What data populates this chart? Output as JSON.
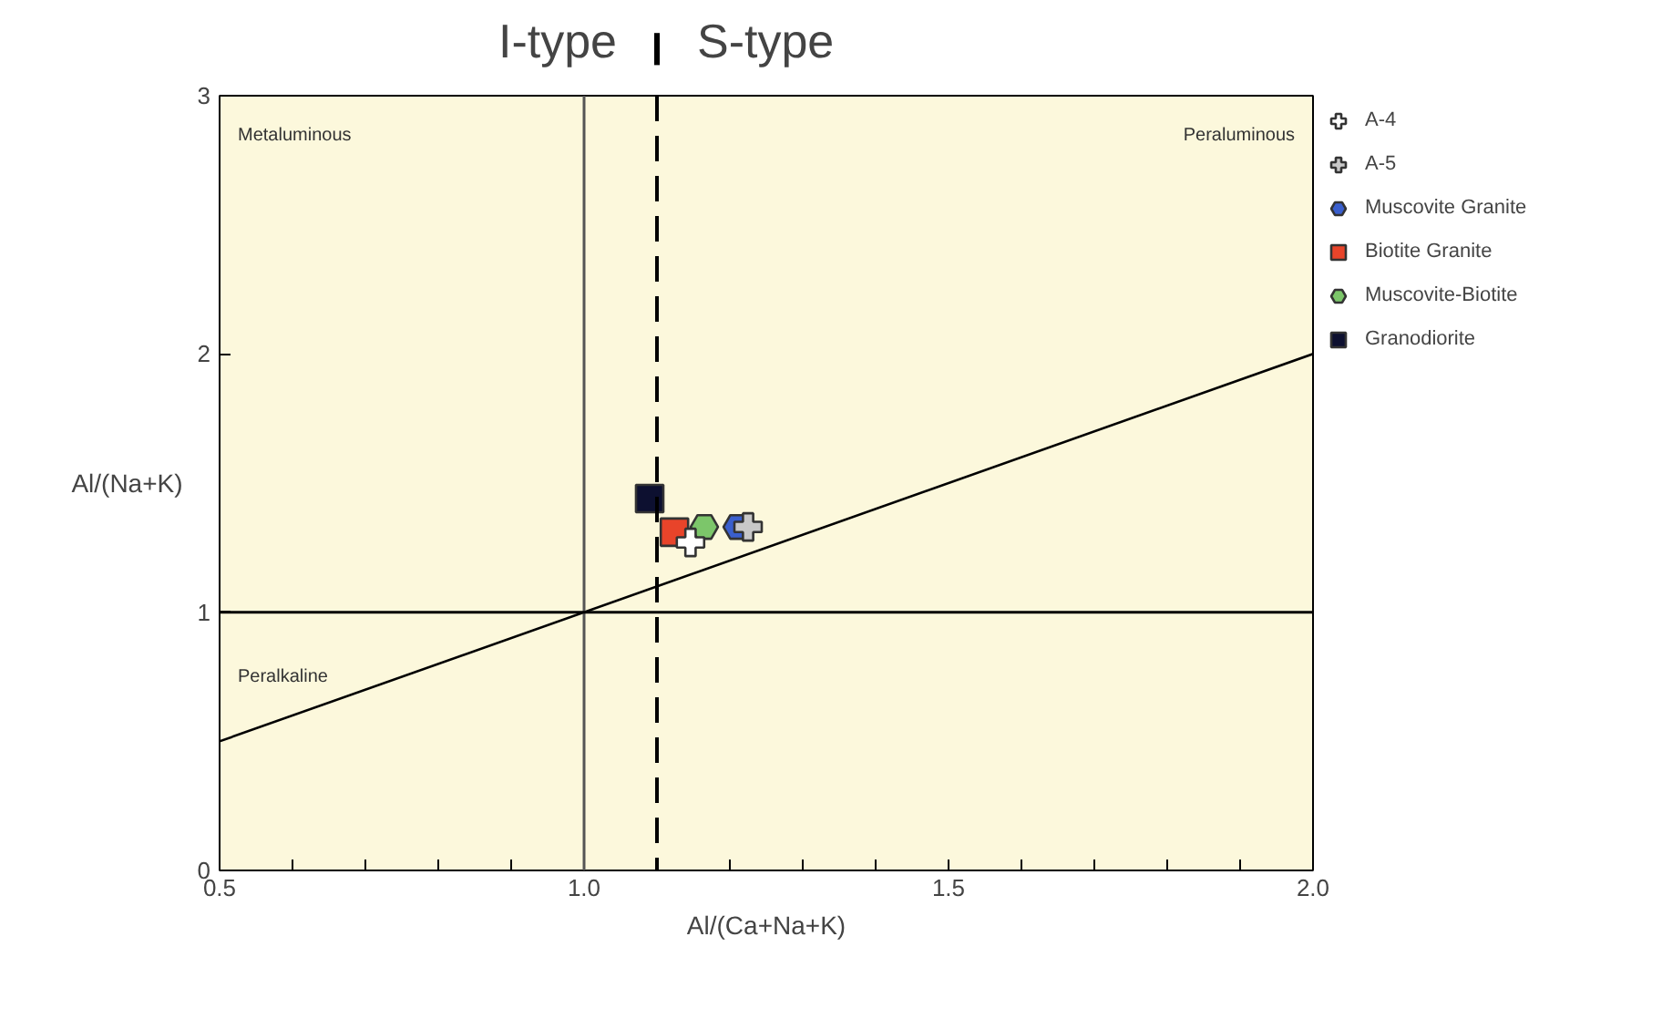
{
  "chart_data": {
    "type": "scatter",
    "xlabel": "Al/(Ca+Na+K)",
    "ylabel": "Al/(Na+K)",
    "xlim": [
      0.5,
      2.0
    ],
    "ylim": [
      0,
      3
    ],
    "xticks": [
      0.5,
      {
        "value": 0.6,
        "label": null
      },
      {
        "value": 0.7,
        "label": null
      },
      {
        "value": 0.8,
        "label": null
      },
      {
        "value": 0.9,
        "label": null
      },
      {
        "value": 1.0,
        "label": "1.0"
      },
      {
        "value": 1.1,
        "label": null
      },
      {
        "value": 1.2,
        "label": null
      },
      {
        "value": 1.3,
        "label": null
      },
      {
        "value": 1.4,
        "label": null
      },
      1.5,
      {
        "value": 1.6,
        "label": null
      },
      {
        "value": 1.7,
        "label": null
      },
      {
        "value": 1.8,
        "label": null
      },
      {
        "value": 1.9,
        "label": null
      },
      {
        "value": 2.0,
        "label": "2.0"
      }
    ],
    "yticks": [
      0,
      1,
      2,
      3
    ],
    "grid": false,
    "legend": "right",
    "series": [
      {
        "name": "A-4",
        "marker": "cross",
        "color": "#ffffff",
        "x": [
          1.146
        ],
        "values": [
          1.27
        ]
      },
      {
        "name": "A-5",
        "marker": "cross",
        "color": "#c8c8c8",
        "x": [
          1.225
        ],
        "values": [
          1.33
        ]
      },
      {
        "name": "Muscovite Granite",
        "color": "#3a5fcd",
        "x": [
          1.21
        ],
        "values": [
          1.33
        ]
      },
      {
        "name": "Biotite Granite",
        "marker": "square",
        "color": "#e8442a",
        "x": [
          1.124
        ],
        "values": [
          1.31
        ]
      },
      {
        "name": "Muscovite-Biotite",
        "color": "#7cc66a",
        "x": [
          1.165
        ],
        "values": [
          1.33
        ]
      },
      {
        "name": "Granodiorite",
        "marker": "square",
        "color": "#0d1030",
        "x": [
          1.09
        ],
        "values": [
          1.44
        ]
      },
      {
        "type": "line",
        "color": "#000000",
        "x": [
          0.5,
          2.0
        ],
        "values": [
          0.5,
          2.0
        ]
      }
    ],
    "ref_lines": [
      {
        "axis": "x",
        "value": 1.0,
        "color": "#555555",
        "line_style": "solid"
      },
      {
        "axis": "y",
        "value": 1.0,
        "color": "#000000",
        "line_style": "solid"
      },
      {
        "axis": "x",
        "value": 1.1,
        "color": "#000000",
        "line_style": "dashed"
      }
    ],
    "annotations": [
      "Metaluminous",
      "Peraluminous",
      "Peralkaline",
      "I-type",
      "S-type"
    ]
  }
}
